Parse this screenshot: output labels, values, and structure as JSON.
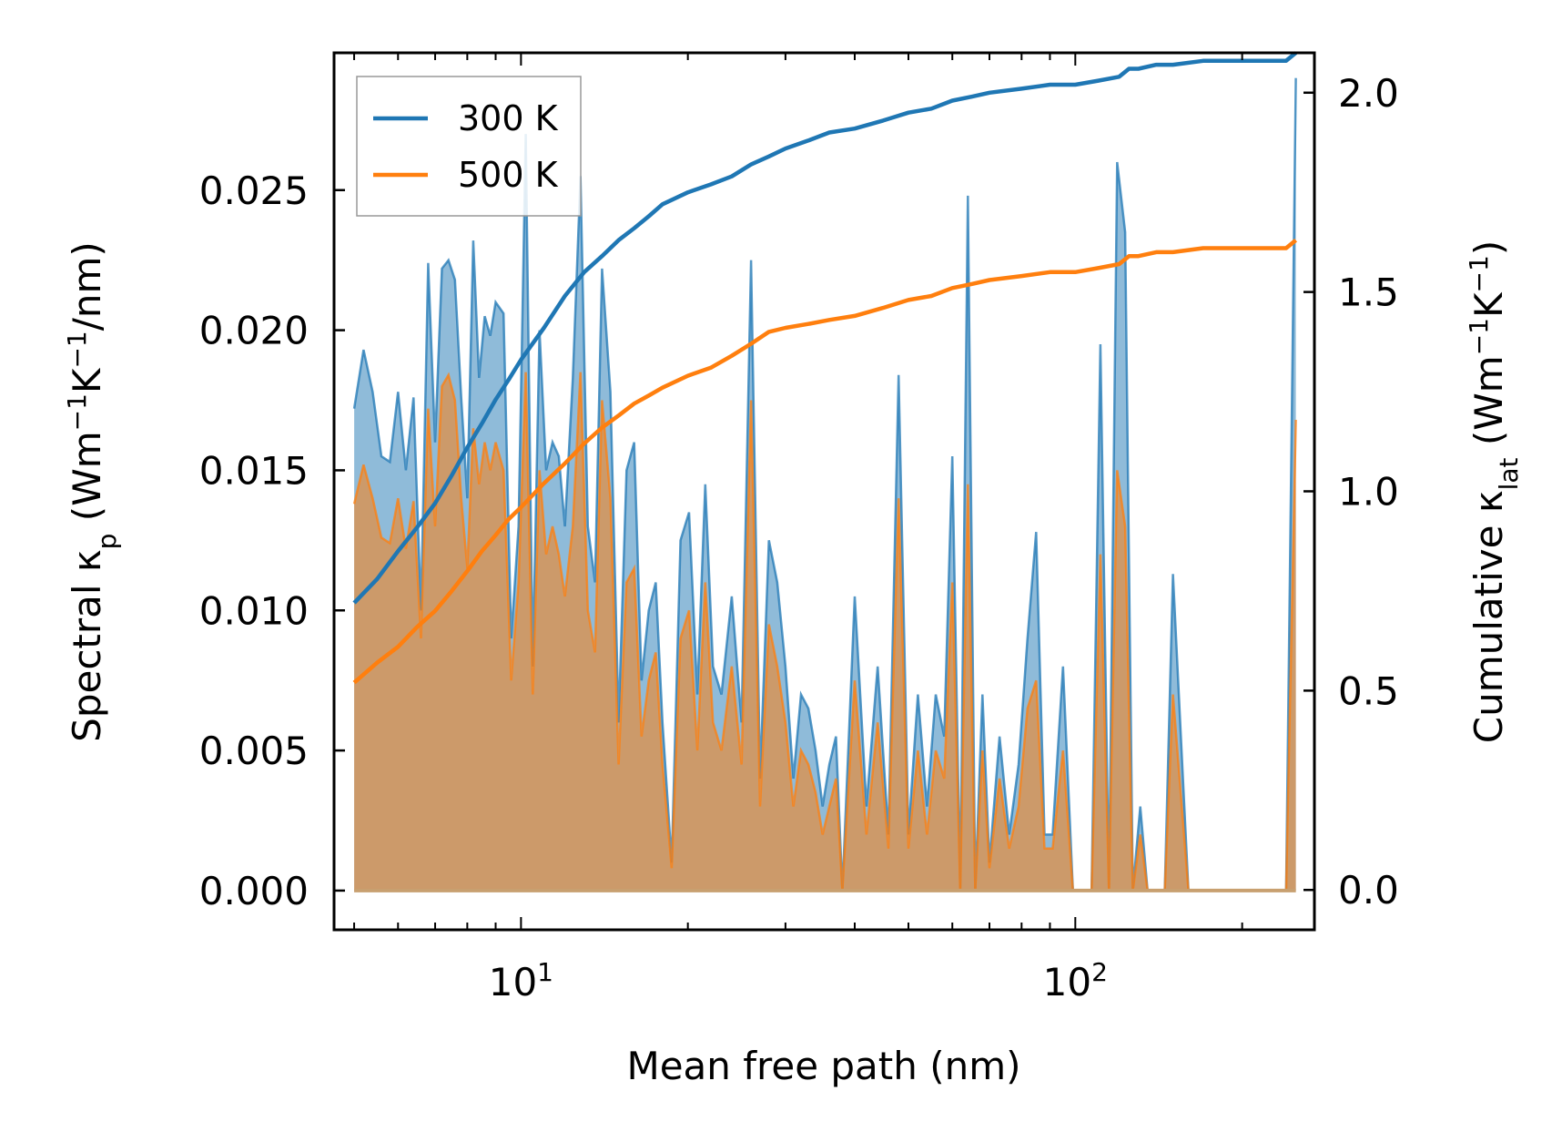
{
  "chart_data": {
    "type": "line",
    "xlabel": "Mean free path (nm)",
    "xscale": "log",
    "xlim": [
      4.6,
      270
    ],
    "x_tick_labels": [
      {
        "value": 10,
        "base": "10",
        "exp": "1"
      },
      {
        "value": 100,
        "base": "10",
        "exp": "2"
      }
    ],
    "ylabel_left": {
      "main": "Spectral κ",
      "sub": "p",
      "unit_pre": " (Wm",
      "sup1": "−1",
      "unit_mid": "K",
      "sup2": "−1",
      "unit_post": "/nm)"
    },
    "ylim_left": [
      -0.0014,
      0.0299
    ],
    "y_ticks_left": [
      "0.000",
      "0.005",
      "0.010",
      "0.015",
      "0.020",
      "0.025"
    ],
    "ylabel_right": {
      "main": "Cumulative κ",
      "sub": "lat",
      "unit_pre": " (Wm",
      "sup1": "−1",
      "unit_mid": "K",
      "sup2": "−1",
      "unit_post": ")"
    },
    "ylim_right": [
      -0.1,
      2.1
    ],
    "y_ticks_right": [
      "0.0",
      "0.5",
      "1.0",
      "1.5",
      "2.0"
    ],
    "legend": {
      "position": "upper-left",
      "entries": [
        {
          "label": "300 K",
          "color": "#1f77b4"
        },
        {
          "label": "500 K",
          "color": "#ff7f0e"
        }
      ]
    },
    "series_spectral": [
      {
        "name": "300 K",
        "color": "#1f77b4",
        "axis": "left",
        "x": [
          5.0,
          5.2,
          5.4,
          5.6,
          5.8,
          6.0,
          6.2,
          6.4,
          6.6,
          6.8,
          7.0,
          7.2,
          7.4,
          7.6,
          7.8,
          8.0,
          8.2,
          8.4,
          8.6,
          8.8,
          9.0,
          9.3,
          9.6,
          9.9,
          10.2,
          10.5,
          10.8,
          11.1,
          11.4,
          11.7,
          12.0,
          12.4,
          12.8,
          13.2,
          13.6,
          14.0,
          14.5,
          15.0,
          15.5,
          16.0,
          16.5,
          17.0,
          17.5,
          18.0,
          18.7,
          19.4,
          20.1,
          20.8,
          21.5,
          22.2,
          23.0,
          24.0,
          25.0,
          26.0,
          27.0,
          28.0,
          29.0,
          30.0,
          31.0,
          32.0,
          33.0,
          34.0,
          35.0,
          36.0,
          37.0,
          38.0,
          40.0,
          42.0,
          44.0,
          46.0,
          48.0,
          50.0,
          52.0,
          54.0,
          56.0,
          58.0,
          60.0,
          62.0,
          64.0,
          66.0,
          68.0,
          70.0,
          73.0,
          76.0,
          79.0,
          82.0,
          85.0,
          88.0,
          91.0,
          95.0,
          99.0,
          103.0,
          107.0,
          111.0,
          115.0,
          119.0,
          123.0,
          127.0,
          131.0,
          135.0,
          140.0,
          145.0,
          150.0,
          160.0,
          170.0,
          180.0,
          190.0,
          200.0,
          220.0,
          240.0,
          250.0
        ],
        "y": [
          0.0172,
          0.0193,
          0.0178,
          0.0155,
          0.0153,
          0.0178,
          0.015,
          0.0176,
          0.01,
          0.0224,
          0.016,
          0.0222,
          0.0225,
          0.0218,
          0.0176,
          0.014,
          0.0232,
          0.0183,
          0.0205,
          0.0198,
          0.021,
          0.0206,
          0.009,
          0.013,
          0.027,
          0.008,
          0.02,
          0.015,
          0.016,
          0.0155,
          0.013,
          0.0183,
          0.0255,
          0.013,
          0.011,
          0.0222,
          0.0178,
          0.006,
          0.015,
          0.016,
          0.0075,
          0.01,
          0.011,
          0.006,
          0.001,
          0.0125,
          0.0135,
          0.007,
          0.0145,
          0.008,
          0.007,
          0.0105,
          0.006,
          0.0225,
          0.004,
          0.0125,
          0.011,
          0.008,
          0.004,
          0.007,
          0.0065,
          0.005,
          0.003,
          0.0045,
          0.0055,
          0.0,
          0.0105,
          0.003,
          0.008,
          0.002,
          0.0184,
          0.002,
          0.007,
          0.003,
          0.007,
          0.0055,
          0.0155,
          0.0,
          0.0248,
          0.0,
          0.007,
          0.001,
          0.0055,
          0.002,
          0.0045,
          0.009,
          0.0128,
          0.002,
          0.002,
          0.008,
          0.0,
          0.0,
          0.0,
          0.0195,
          0.0,
          0.026,
          0.0235,
          0.0,
          0.003,
          0.0,
          0.0,
          0.0,
          0.0113,
          0.0,
          0.0,
          0.0,
          0.0,
          0.0,
          0.0,
          0.0,
          0.029
        ]
      },
      {
        "name": "500 K",
        "color": "#ff7f0e",
        "axis": "left",
        "x": [
          5.0,
          5.2,
          5.4,
          5.6,
          5.8,
          6.0,
          6.2,
          6.4,
          6.6,
          6.8,
          7.0,
          7.2,
          7.4,
          7.6,
          7.8,
          8.0,
          8.2,
          8.4,
          8.6,
          8.8,
          9.0,
          9.3,
          9.6,
          9.9,
          10.2,
          10.5,
          10.8,
          11.1,
          11.4,
          11.7,
          12.0,
          12.4,
          12.8,
          13.2,
          13.6,
          14.0,
          14.5,
          15.0,
          15.5,
          16.0,
          16.5,
          17.0,
          17.5,
          18.0,
          18.7,
          19.4,
          20.1,
          20.8,
          21.5,
          22.2,
          23.0,
          24.0,
          25.0,
          26.0,
          27.0,
          28.0,
          29.0,
          30.0,
          31.0,
          32.0,
          33.0,
          34.0,
          35.0,
          36.0,
          37.0,
          38.0,
          40.0,
          42.0,
          44.0,
          46.0,
          48.0,
          50.0,
          52.0,
          54.0,
          56.0,
          58.0,
          60.0,
          62.0,
          64.0,
          66.0,
          68.0,
          70.0,
          73.0,
          76.0,
          79.0,
          82.0,
          85.0,
          88.0,
          91.0,
          95.0,
          99.0,
          103.0,
          107.0,
          111.0,
          115.0,
          119.0,
          123.0,
          127.0,
          131.0,
          135.0,
          140.0,
          145.0,
          150.0,
          160.0,
          170.0,
          180.0,
          190.0,
          200.0,
          220.0,
          240.0,
          250.0
        ],
        "y": [
          0.0138,
          0.0152,
          0.014,
          0.0126,
          0.0124,
          0.014,
          0.0122,
          0.0139,
          0.009,
          0.0172,
          0.013,
          0.018,
          0.0184,
          0.0175,
          0.014,
          0.0115,
          0.0165,
          0.0145,
          0.016,
          0.015,
          0.016,
          0.015,
          0.0075,
          0.011,
          0.0185,
          0.007,
          0.015,
          0.012,
          0.013,
          0.012,
          0.0105,
          0.013,
          0.0185,
          0.01,
          0.0085,
          0.0175,
          0.014,
          0.0045,
          0.011,
          0.0115,
          0.0055,
          0.0075,
          0.0085,
          0.0045,
          0.0008,
          0.009,
          0.01,
          0.005,
          0.011,
          0.006,
          0.005,
          0.008,
          0.0045,
          0.0175,
          0.003,
          0.0095,
          0.008,
          0.006,
          0.003,
          0.005,
          0.0045,
          0.0035,
          0.002,
          0.003,
          0.004,
          0.0,
          0.0075,
          0.002,
          0.006,
          0.0015,
          0.014,
          0.0015,
          0.005,
          0.002,
          0.005,
          0.004,
          0.011,
          0.0,
          0.0145,
          0.0,
          0.005,
          0.0008,
          0.004,
          0.0015,
          0.003,
          0.0065,
          0.0075,
          0.0015,
          0.0015,
          0.005,
          0.0,
          0.0,
          0.0,
          0.012,
          0.0,
          0.015,
          0.013,
          0.0,
          0.002,
          0.0,
          0.0,
          0.0,
          0.007,
          0.0,
          0.0,
          0.0,
          0.0,
          0.0,
          0.0,
          0.0,
          0.0168
        ]
      }
    ],
    "series_cumulative": [
      {
        "name": "300 K",
        "color": "#1f77b4",
        "axis": "right",
        "x": [
          5.0,
          5.5,
          6.0,
          6.5,
          7.0,
          7.5,
          8.0,
          8.5,
          9.0,
          9.5,
          10.0,
          11.0,
          12.0,
          13.0,
          14.0,
          15.0,
          16.0,
          17.0,
          18.0,
          20.0,
          22.0,
          24.0,
          26.0,
          28.0,
          30.0,
          33.0,
          36.0,
          40.0,
          45.0,
          50.0,
          55.0,
          60.0,
          65.0,
          70.0,
          80.0,
          90.0,
          100.0,
          110.0,
          120.0,
          125.0,
          130.0,
          140.0,
          150.0,
          170.0,
          200.0,
          240.0,
          250.0
        ],
        "y": [
          0.72,
          0.78,
          0.85,
          0.91,
          0.97,
          1.04,
          1.11,
          1.17,
          1.23,
          1.28,
          1.33,
          1.41,
          1.49,
          1.55,
          1.59,
          1.63,
          1.66,
          1.69,
          1.72,
          1.75,
          1.77,
          1.79,
          1.82,
          1.84,
          1.86,
          1.88,
          1.9,
          1.91,
          1.93,
          1.95,
          1.96,
          1.98,
          1.99,
          2.0,
          2.01,
          2.02,
          2.02,
          2.03,
          2.04,
          2.06,
          2.06,
          2.07,
          2.07,
          2.08,
          2.08,
          2.08,
          2.1
        ]
      },
      {
        "name": "500 K",
        "color": "#ff7f0e",
        "axis": "right",
        "x": [
          5.0,
          5.5,
          6.0,
          6.5,
          7.0,
          7.5,
          8.0,
          8.5,
          9.0,
          9.5,
          10.0,
          11.0,
          12.0,
          13.0,
          14.0,
          15.0,
          16.0,
          17.0,
          18.0,
          20.0,
          22.0,
          24.0,
          26.0,
          28.0,
          30.0,
          33.0,
          36.0,
          40.0,
          45.0,
          50.0,
          55.0,
          60.0,
          65.0,
          70.0,
          80.0,
          90.0,
          100.0,
          110.0,
          120.0,
          125.0,
          130.0,
          140.0,
          150.0,
          170.0,
          200.0,
          240.0,
          250.0
        ],
        "y": [
          0.52,
          0.57,
          0.61,
          0.66,
          0.7,
          0.75,
          0.8,
          0.85,
          0.89,
          0.93,
          0.96,
          1.02,
          1.07,
          1.12,
          1.16,
          1.19,
          1.22,
          1.24,
          1.26,
          1.29,
          1.31,
          1.34,
          1.37,
          1.4,
          1.41,
          1.42,
          1.43,
          1.44,
          1.46,
          1.48,
          1.49,
          1.51,
          1.52,
          1.53,
          1.54,
          1.55,
          1.55,
          1.56,
          1.57,
          1.59,
          1.59,
          1.6,
          1.6,
          1.61,
          1.61,
          1.61,
          1.63
        ]
      }
    ]
  }
}
